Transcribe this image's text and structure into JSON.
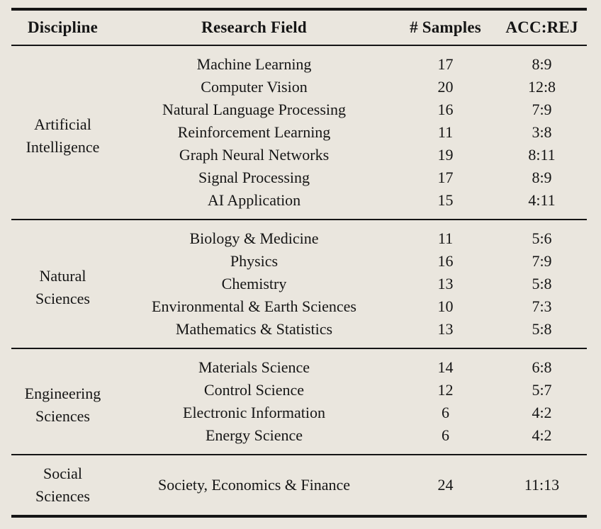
{
  "colors": {
    "background": "#EAE6DE",
    "text": "#151515",
    "rule": "#151515"
  },
  "table": {
    "columns": [
      "Discipline",
      "Research Field",
      "# Samples",
      "ACC:REJ"
    ],
    "groups": [
      {
        "discipline": "Artificial Intelligence",
        "rows": [
          {
            "field": "Machine Learning",
            "samples": "17",
            "acc_rej": "8:9"
          },
          {
            "field": "Computer Vision",
            "samples": "20",
            "acc_rej": "12:8"
          },
          {
            "field": "Natural Language Processing",
            "samples": "16",
            "acc_rej": "7:9"
          },
          {
            "field": "Reinforcement Learning",
            "samples": "11",
            "acc_rej": "3:8"
          },
          {
            "field": "Graph Neural Networks",
            "samples": "19",
            "acc_rej": "8:11"
          },
          {
            "field": "Signal Processing",
            "samples": "17",
            "acc_rej": "8:9"
          },
          {
            "field": "AI Application",
            "samples": "15",
            "acc_rej": "4:11"
          }
        ]
      },
      {
        "discipline": "Natural Sciences",
        "rows": [
          {
            "field": "Biology & Medicine",
            "samples": "11",
            "acc_rej": "5:6"
          },
          {
            "field": "Physics",
            "samples": "16",
            "acc_rej": "7:9"
          },
          {
            "field": "Chemistry",
            "samples": "13",
            "acc_rej": "5:8"
          },
          {
            "field": "Environmental & Earth Sciences",
            "samples": "10",
            "acc_rej": "7:3"
          },
          {
            "field": "Mathematics & Statistics",
            "samples": "13",
            "acc_rej": "5:8"
          }
        ]
      },
      {
        "discipline": "Engineering Sciences",
        "rows": [
          {
            "field": "Materials Science",
            "samples": "14",
            "acc_rej": "6:8"
          },
          {
            "field": "Control Science",
            "samples": "12",
            "acc_rej": "5:7"
          },
          {
            "field": "Electronic Information",
            "samples": "6",
            "acc_rej": "4:2"
          },
          {
            "field": "Energy Science",
            "samples": "6",
            "acc_rej": "4:2"
          }
        ]
      },
      {
        "discipline": "Social Sciences",
        "rows": [
          {
            "field": "Society, Economics & Finance",
            "samples": "24",
            "acc_rej": "11:13"
          }
        ]
      }
    ]
  }
}
